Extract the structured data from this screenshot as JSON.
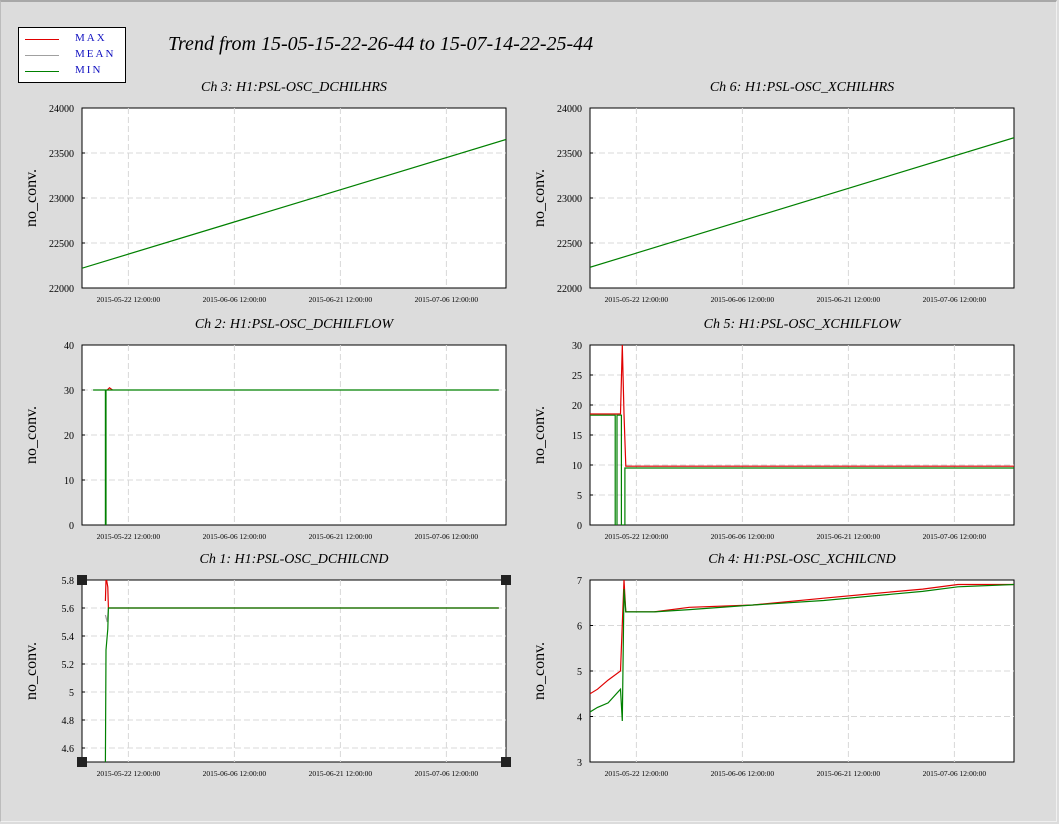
{
  "title": "Trend from 15-05-15-22-26-44 to 15-07-14-22-25-44",
  "legend": [
    {
      "label": "MAX",
      "color": "#e00000"
    },
    {
      "label": "MEAN",
      "color": "#a0a0a0"
    },
    {
      "label": "MIN",
      "color": "#008000"
    }
  ],
  "chart_data": [
    {
      "type": "line",
      "title": "Ch 3: H1:PSL-OSC_DCHILHRS",
      "ylabel": "no_conv.",
      "xticks": [
        "2015-05-22 12:00:00",
        "2015-06-06 12:00:00",
        "2015-06-21 12:00:00",
        "2015-07-06 12:00:00"
      ],
      "xlim": [
        "2015-05-15 22:26:44",
        "2015-07-14 22:25:44"
      ],
      "ylim": [
        22000,
        24000
      ],
      "yticks": [
        "22000",
        "22500",
        "23000",
        "23500",
        "24000"
      ],
      "grid": true,
      "series": [
        {
          "name": "MIN",
          "color": "#008000",
          "points": [
            [
              "2015-05-15 22:26:44",
              22220
            ],
            [
              "2015-07-14 22:25:44",
              23650
            ]
          ]
        }
      ]
    },
    {
      "type": "line",
      "title": "Ch 6: H1:PSL-OSC_XCHILHRS",
      "ylabel": "no_conv.",
      "xticks": [
        "2015-05-22 12:00:00",
        "2015-06-06 12:00:00",
        "2015-06-21 12:00:00",
        "2015-07-06 12:00:00"
      ],
      "xlim": [
        "2015-05-15 22:26:44",
        "2015-07-14 22:25:44"
      ],
      "ylim": [
        22000,
        24000
      ],
      "yticks": [
        "22000",
        "22500",
        "23000",
        "23500",
        "24000"
      ],
      "grid": true,
      "series": [
        {
          "name": "MIN",
          "color": "#008000",
          "points": [
            [
              "2015-05-15 22:26:44",
              22230
            ],
            [
              "2015-07-14 22:25:44",
              23670
            ]
          ]
        }
      ]
    },
    {
      "type": "line",
      "title": "Ch 2: H1:PSL-OSC_DCHILFLOW",
      "ylabel": "no_conv.",
      "xticks": [
        "2015-05-22 12:00:00",
        "2015-06-06 12:00:00",
        "2015-06-21 12:00:00",
        "2015-07-06 12:00:00"
      ],
      "xlim": [
        "2015-05-15 22:26:44",
        "2015-07-14 22:25:44"
      ],
      "ylim": [
        0,
        40
      ],
      "yticks": [
        "0",
        "10",
        "20",
        "30",
        "40"
      ],
      "grid": true,
      "series": [
        {
          "name": "MAX",
          "color": "#e00000",
          "points": [
            [
              "2015-05-19 12:00:00",
              30
            ],
            [
              "2015-05-19 20:00:00",
              30.5
            ],
            [
              "2015-05-20 06:00:00",
              30
            ]
          ]
        },
        {
          "name": "MIN",
          "color": "#008000",
          "points": [
            [
              "2015-05-17 12:00:00",
              30
            ],
            [
              "2015-05-19 06:00:00",
              30
            ],
            [
              "2015-05-19 06:00:00",
              0
            ],
            [
              "2015-05-19 08:00:00",
              0
            ],
            [
              "2015-05-19 08:00:00",
              30
            ],
            [
              "2015-07-13 22:00:00",
              30
            ]
          ]
        }
      ]
    },
    {
      "type": "line",
      "title": "Ch 5: H1:PSL-OSC_XCHILFLOW",
      "ylabel": "no_conv.",
      "xticks": [
        "2015-05-22 12:00:00",
        "2015-06-06 12:00:00",
        "2015-06-21 12:00:00",
        "2015-07-06 12:00:00"
      ],
      "xlim": [
        "2015-05-15 22:26:44",
        "2015-07-14 22:25:44"
      ],
      "ylim": [
        0,
        30
      ],
      "yticks": [
        "0",
        "5",
        "10",
        "15",
        "20",
        "25",
        "30"
      ],
      "grid": true,
      "series": [
        {
          "name": "MAX",
          "color": "#e00000",
          "points": [
            [
              "2015-05-15 22:26:44",
              18.5
            ],
            [
              "2015-05-20 06:00:00",
              18.5
            ],
            [
              "2015-05-20 12:00:00",
              30
            ],
            [
              "2015-05-20 18:00:00",
              18.5
            ],
            [
              "2015-05-21 00:00:00",
              9.8
            ],
            [
              "2015-07-14 22:25:44",
              9.8
            ]
          ]
        },
        {
          "name": "MIN",
          "color": "#008000",
          "points": [
            [
              "2015-05-15 22:26:44",
              18.3
            ],
            [
              "2015-05-19 12:00:00",
              18.3
            ],
            [
              "2015-05-19 12:00:00",
              0
            ],
            [
              "2015-05-19 18:00:00",
              0
            ],
            [
              "2015-05-19 18:00:00",
              18.3
            ],
            [
              "2015-05-20 09:00:00",
              18.3
            ],
            [
              "2015-05-20 09:00:00",
              0
            ],
            [
              "2015-05-20 21:00:00",
              0
            ],
            [
              "2015-05-20 21:00:00",
              9.5
            ],
            [
              "2015-07-14 22:25:44",
              9.5
            ]
          ]
        }
      ]
    },
    {
      "type": "line",
      "title": "Ch 1: H1:PSL-OSC_DCHILCND",
      "ylabel": "no_conv.",
      "xticks": [
        "2015-05-22 12:00:00",
        "2015-06-06 12:00:00",
        "2015-06-21 12:00:00",
        "2015-07-06 12:00:00"
      ],
      "xlim": [
        "2015-05-15 22:26:44",
        "2015-07-14 22:25:44"
      ],
      "ylim": [
        4.5,
        5.8
      ],
      "yticks": [
        "4.6",
        "4.8",
        "5",
        "5.2",
        "5.4",
        "5.6",
        "5.8"
      ],
      "grid": true,
      "selected": true,
      "series": [
        {
          "name": "MAX",
          "color": "#e00000",
          "points": [
            [
              "2015-05-19 06:00:00",
              5.65
            ],
            [
              "2015-05-19 08:00:00",
              5.8
            ],
            [
              "2015-05-19 10:00:00",
              5.8
            ],
            [
              "2015-05-19 14:00:00",
              5.75
            ],
            [
              "2015-05-19 16:00:00",
              5.6
            ],
            [
              "2015-07-13 22:00:00",
              5.6
            ]
          ]
        },
        {
          "name": "MEAN",
          "color": "#a0a0a0",
          "points": [
            [
              "2015-05-19 06:00:00",
              5.55
            ],
            [
              "2015-05-19 12:00:00",
              5.5
            ],
            [
              "2015-05-19 16:00:00",
              5.6
            ]
          ]
        },
        {
          "name": "MIN",
          "color": "#008000",
          "points": [
            [
              "2015-05-19 06:00:00",
              4.5
            ],
            [
              "2015-05-19 08:00:00",
              5.3
            ],
            [
              "2015-05-19 10:00:00",
              5.35
            ],
            [
              "2015-05-19 14:00:00",
              5.45
            ],
            [
              "2015-05-19 16:00:00",
              5.6
            ],
            [
              "2015-07-13 22:00:00",
              5.6
            ]
          ]
        }
      ]
    },
    {
      "type": "line",
      "title": "Ch 4: H1:PSL-OSC_XCHILCND",
      "ylabel": "no_conv.",
      "xticks": [
        "2015-05-22 12:00:00",
        "2015-06-06 12:00:00",
        "2015-06-21 12:00:00",
        "2015-07-06 12:00:00"
      ],
      "xlim": [
        "2015-05-15 22:26:44",
        "2015-07-14 22:25:44"
      ],
      "ylim": [
        3,
        7
      ],
      "yticks": [
        "3",
        "4",
        "5",
        "6",
        "7"
      ],
      "grid": true,
      "series": [
        {
          "name": "MAX",
          "color": "#e00000",
          "points": [
            [
              "2015-05-15 22:26:44",
              4.5
            ],
            [
              "2015-05-17 00:00:00",
              4.6
            ],
            [
              "2015-05-18 12:00:00",
              4.8
            ],
            [
              "2015-05-20 06:00:00",
              5.0
            ],
            [
              "2015-05-20 18:00:00",
              7.0
            ],
            [
              "2015-05-21 00:00:00",
              6.3
            ],
            [
              "2015-05-25 00:00:00",
              6.3
            ],
            [
              "2015-05-30 00:00:00",
              6.4
            ],
            [
              "2015-06-08 00:00:00",
              6.45
            ],
            [
              "2015-06-18 00:00:00",
              6.6
            ],
            [
              "2015-06-25 00:00:00",
              6.7
            ],
            [
              "2015-07-02 00:00:00",
              6.8
            ],
            [
              "2015-07-07 00:00:00",
              6.9
            ],
            [
              "2015-07-14 22:25:44",
              6.9
            ]
          ]
        },
        {
          "name": "MIN",
          "color": "#008000",
          "points": [
            [
              "2015-05-15 22:26:44",
              4.1
            ],
            [
              "2015-05-17 00:00:00",
              4.2
            ],
            [
              "2015-05-18 12:00:00",
              4.3
            ],
            [
              "2015-05-20 06:00:00",
              4.6
            ],
            [
              "2015-05-20 12:00:00",
              3.9
            ],
            [
              "2015-05-20 18:00:00",
              6.8
            ],
            [
              "2015-05-21 00:00:00",
              6.3
            ],
            [
              "2015-05-25 00:00:00",
              6.3
            ],
            [
              "2015-05-30 00:00:00",
              6.35
            ],
            [
              "2015-06-08 00:00:00",
              6.45
            ],
            [
              "2015-06-18 00:00:00",
              6.55
            ],
            [
              "2015-06-25 00:00:00",
              6.65
            ],
            [
              "2015-07-02 00:00:00",
              6.75
            ],
            [
              "2015-07-07 00:00:00",
              6.85
            ],
            [
              "2015-07-14 22:25:44",
              6.9
            ]
          ]
        }
      ]
    }
  ]
}
